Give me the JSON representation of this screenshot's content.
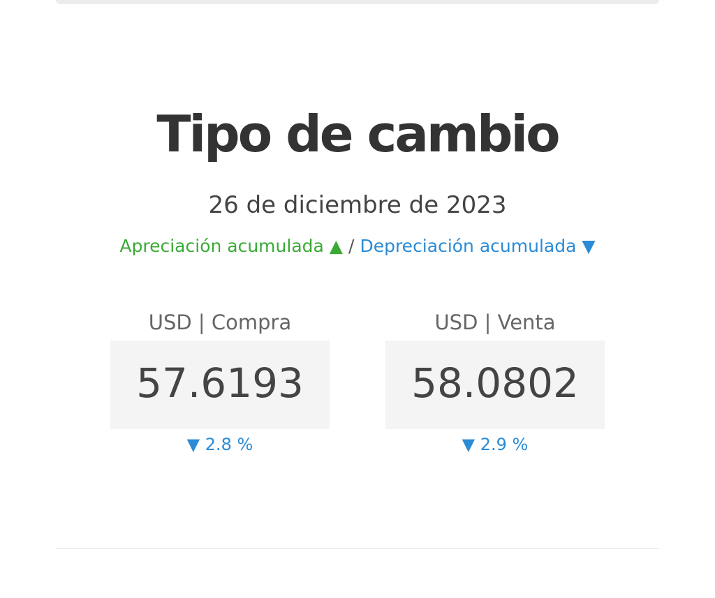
{
  "header": {
    "title": "Tipo de cambio",
    "date": "26 de diciembre de 2023"
  },
  "legend": {
    "appreciation": "Apreciación acumulada ▲",
    "separator": "/",
    "depreciation": "Depreciación acumulada ▼"
  },
  "rates": [
    {
      "label": "USD | Compra",
      "value": "57.6193",
      "change": "▼ 2.8 %"
    },
    {
      "label": "USD | Venta",
      "value": "58.0802",
      "change": "▼ 2.9 %"
    }
  ]
}
